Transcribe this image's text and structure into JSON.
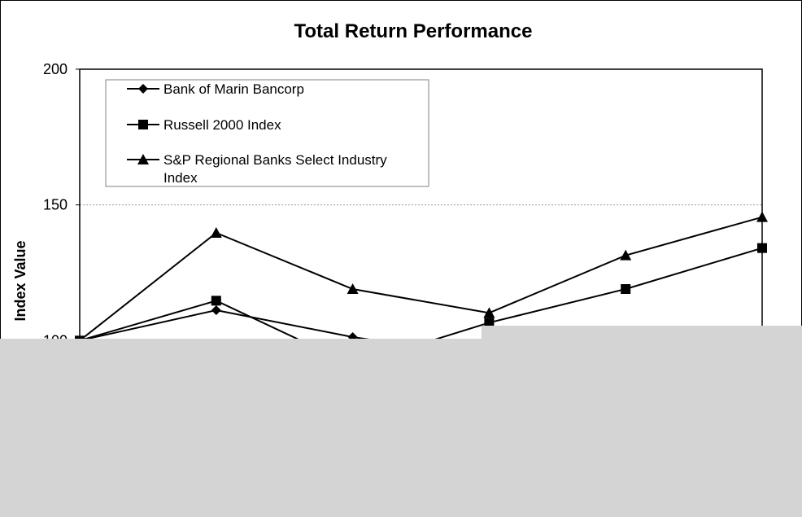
{
  "chart_data": {
    "type": "line",
    "title": "Total Return Performance",
    "ylabel": "Index Value",
    "xlabel": "",
    "ylim": [
      50,
      200
    ],
    "yticks": [
      200,
      150,
      100
    ],
    "grid": true,
    "legend_position": "top-left",
    "series": [
      {
        "name": "Bank of Marin Bancorp",
        "marker": "diamond",
        "color": "#000000",
        "values": [
          100,
          111.2,
          101.3,
          94
        ]
      },
      {
        "name": "Russell 2000 Index",
        "marker": "square",
        "color": "#000000",
        "values": [
          100,
          114.7,
          91,
          106.6,
          119,
          134.1
        ]
      },
      {
        "name": "S&P Regional Banks Select Industry Index",
        "name_lines": [
          "S&P Regional Banks Select Industry",
          "Index"
        ],
        "marker": "triangle",
        "color": "#000000",
        "values": [
          100,
          139.7,
          119,
          110.2,
          131.4,
          145.5
        ]
      }
    ]
  }
}
